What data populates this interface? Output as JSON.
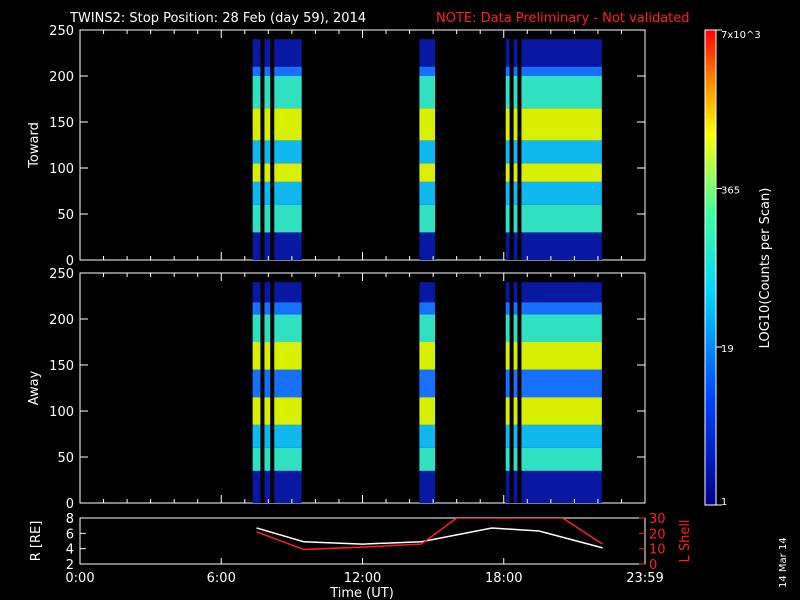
{
  "header": {
    "title": "TWINS2: Stop Position: 28 Feb (day  59), 2014",
    "note": "NOTE: Data Preliminary - Not validated"
  },
  "stamp": "14 Mar 14",
  "colors": {
    "background": "#000000",
    "note": "#ff2020",
    "r_line": "#ffffff",
    "l_line": "#ff2020"
  },
  "colorbar": {
    "label": "LOG10(Counts per Scan)",
    "scale": "log",
    "tick_labels": [
      "7x10^3",
      "365",
      "19",
      "1"
    ],
    "tick_values": [
      7000,
      365,
      19,
      1
    ]
  },
  "chart_data": [
    {
      "type": "heatmap",
      "ylabel": "Toward",
      "ylim": [
        0,
        250
      ],
      "yticks": [
        "0",
        "50",
        "100",
        "150",
        "200",
        "250"
      ],
      "xlim_hours": [
        0,
        24
      ],
      "data_intervals_UT": [
        [
          "7:20",
          "9:25"
        ],
        [
          "14:25",
          "15:05"
        ],
        [
          "18:05",
          "22:10"
        ]
      ],
      "gaps_UT": [
        "7:45",
        "8:10",
        "18:20",
        "18:40"
      ],
      "bands": [
        {
          "y_range": [
            30,
            60
          ],
          "level": "mid"
        },
        {
          "y_range": [
            60,
            85
          ],
          "level": "mid-low"
        },
        {
          "y_range": [
            85,
            105
          ],
          "level": "high"
        },
        {
          "y_range": [
            105,
            130
          ],
          "level": "mid-low"
        },
        {
          "y_range": [
            130,
            165
          ],
          "level": "high"
        },
        {
          "y_range": [
            165,
            200
          ],
          "level": "mid"
        },
        {
          "y_range": [
            200,
            210
          ],
          "level": "low"
        }
      ]
    },
    {
      "type": "heatmap",
      "ylabel": "Away",
      "ylim": [
        0,
        250
      ],
      "yticks": [
        "0",
        "50",
        "100",
        "150",
        "200",
        "250"
      ],
      "xlim_hours": [
        0,
        24
      ],
      "data_intervals_UT": [
        [
          "7:20",
          "9:25"
        ],
        [
          "14:25",
          "15:05"
        ],
        [
          "18:05",
          "22:10"
        ]
      ],
      "gaps_UT": [
        "7:45",
        "8:10",
        "18:20",
        "18:40"
      ],
      "bands": [
        {
          "y_range": [
            35,
            60
          ],
          "level": "mid"
        },
        {
          "y_range": [
            60,
            85
          ],
          "level": "mid-low"
        },
        {
          "y_range": [
            85,
            115
          ],
          "level": "high"
        },
        {
          "y_range": [
            115,
            145
          ],
          "level": "low"
        },
        {
          "y_range": [
            145,
            175
          ],
          "level": "high"
        },
        {
          "y_range": [
            175,
            205
          ],
          "level": "mid"
        },
        {
          "y_range": [
            205,
            218
          ],
          "level": "low"
        }
      ]
    },
    {
      "type": "line",
      "xlabel": "Time (UT)",
      "xticks": [
        "0:00",
        "6:00",
        "12:00",
        "18:00",
        "23:59"
      ],
      "left_axis": {
        "label": "R [RE]",
        "ticks": [
          "2",
          "4",
          "6",
          "8"
        ],
        "ylim": [
          2,
          8
        ]
      },
      "right_axis": {
        "label": "L Shell",
        "ticks": [
          "0",
          "10",
          "20",
          "30"
        ],
        "ylim": [
          0,
          30
        ]
      },
      "series": [
        {
          "axis": "left",
          "x": [
            7.5,
            9.5,
            12.0,
            14.5,
            17.5,
            19.5,
            22.2
          ],
          "y": [
            6.7,
            4.9,
            4.6,
            4.9,
            6.7,
            6.3,
            4.1
          ]
        },
        {
          "axis": "right",
          "x": [
            7.5,
            9.5,
            12.0,
            14.5,
            16.0,
            20.5,
            22.2
          ],
          "y": [
            21.0,
            9.5,
            11.0,
            13.0,
            30.0,
            30.0,
            13.0
          ]
        }
      ]
    }
  ]
}
